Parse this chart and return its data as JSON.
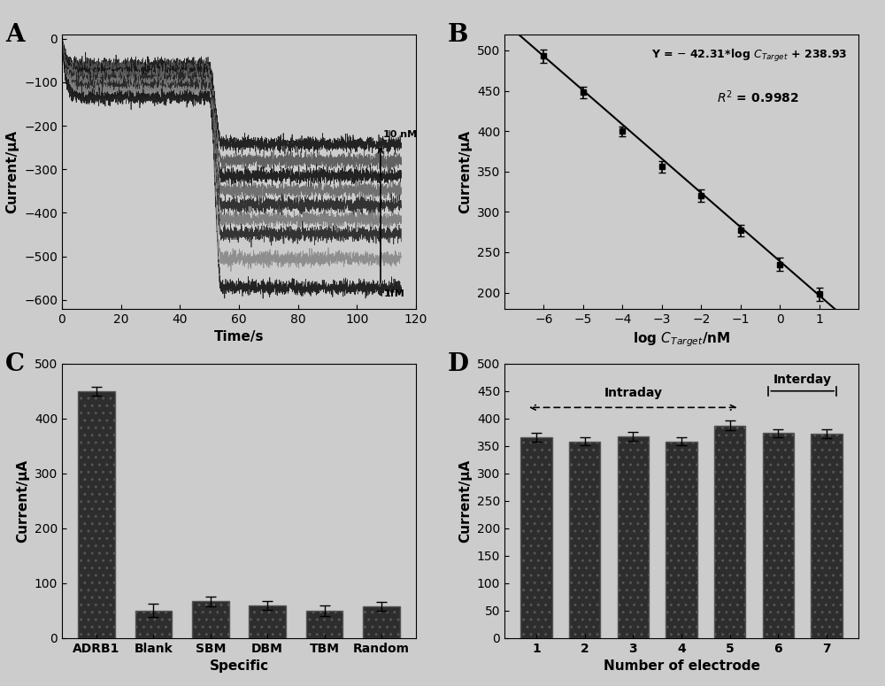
{
  "panel_A": {
    "label": "A",
    "time_rise": 5,
    "time_plateau_end": 50,
    "time_total": 115,
    "n_curves": 9,
    "plateau_levels": [
      -62,
      -70,
      -78,
      -86,
      -95,
      -103,
      -112,
      -122,
      -135
    ],
    "drop_levels": [
      -242,
      -280,
      -315,
      -348,
      -382,
      -415,
      -448,
      -505,
      -572
    ],
    "xlabel": "Time/s",
    "ylabel": "Current/μA",
    "xlim": [
      0,
      120
    ],
    "ylim": [
      -620,
      10
    ],
    "yticks": [
      0,
      -100,
      -200,
      -300,
      -400,
      -500,
      -600
    ],
    "xticks": [
      0,
      20,
      40,
      60,
      80,
      100,
      120
    ],
    "label_10nM": "10 nM",
    "label_1fM": "1fM"
  },
  "panel_B": {
    "label": "B",
    "x_pts": [
      -6,
      -5,
      -4,
      -3,
      -2,
      -1,
      0,
      1
    ],
    "y_pts": [
      493,
      448,
      400,
      356,
      320,
      277,
      235,
      198
    ],
    "y_err": [
      8,
      7,
      6,
      7,
      8,
      7,
      8,
      8
    ],
    "fit_slope": -42.31,
    "fit_intercept": 238.93,
    "xlabel": "log C$_{Target}$/nM",
    "ylabel": "Current/μA",
    "xlim": [
      -7,
      2
    ],
    "ylim": [
      180,
      520
    ],
    "xticks": [
      -6,
      -5,
      -4,
      -3,
      -2,
      -1,
      0,
      1
    ],
    "yticks": [
      200,
      250,
      300,
      350,
      400,
      450,
      500
    ]
  },
  "panel_C": {
    "label": "C",
    "categories": [
      "ADRB1",
      "Blank",
      "SBM",
      "DBM",
      "TBM",
      "Random"
    ],
    "values": [
      449,
      50,
      67,
      59,
      50,
      57
    ],
    "errors": [
      8,
      12,
      9,
      8,
      10,
      8
    ],
    "xlabel": "Specific",
    "ylabel": "Current/μA",
    "ylim": [
      0,
      500
    ],
    "yticks": [
      0,
      100,
      200,
      300,
      400,
      500
    ],
    "bar_color": "#2d2d2d"
  },
  "panel_D": {
    "label": "D",
    "categories": [
      1,
      2,
      3,
      4,
      5,
      6,
      7
    ],
    "values": [
      365,
      358,
      368,
      358,
      387,
      373,
      372
    ],
    "errors": [
      8,
      7,
      8,
      7,
      9,
      8,
      8
    ],
    "xlabel": "Number of electrode",
    "ylabel": "Current/μA",
    "ylim": [
      0,
      500
    ],
    "yticks": [
      0,
      50,
      100,
      150,
      200,
      250,
      300,
      350,
      400,
      450,
      500
    ],
    "bar_color": "#2d2d2d",
    "intraday_label": "Intraday",
    "interday_label": "Interday"
  },
  "bg_color": "#cccccc",
  "font_size": 11
}
